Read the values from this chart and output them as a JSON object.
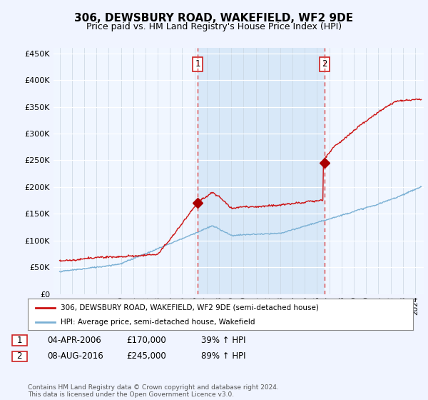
{
  "title": "306, DEWSBURY ROAD, WAKEFIELD, WF2 9DE",
  "subtitle": "Price paid vs. HM Land Registry's House Price Index (HPI)",
  "ylabel_ticks": [
    "£0",
    "£50K",
    "£100K",
    "£150K",
    "£200K",
    "£250K",
    "£300K",
    "£350K",
    "£400K",
    "£450K"
  ],
  "ytick_values": [
    0,
    50000,
    100000,
    150000,
    200000,
    250000,
    300000,
    350000,
    400000,
    450000
  ],
  "ylim": [
    0,
    460000
  ],
  "xlim_start": 1994.5,
  "xlim_end": 2024.7,
  "vline1_x": 2006.25,
  "vline2_x": 2016.6,
  "vline_color": "#dd4444",
  "marker1_x": 2006.25,
  "marker1_y": 170000,
  "marker2_x": 2016.6,
  "marker2_y": 245000,
  "marker_color": "#aa0000",
  "red_line_color": "#cc1111",
  "blue_line_color": "#7ab0d4",
  "background_color": "#f0f4ff",
  "plot_bg_color": "#f0f6ff",
  "shade_color": "#d8e8f8",
  "grid_color": "#c8d4e0",
  "legend_line1": "306, DEWSBURY ROAD, WAKEFIELD, WF2 9DE (semi-detached house)",
  "legend_line2": "HPI: Average price, semi-detached house, Wakefield",
  "table_row1": [
    "1",
    "04-APR-2006",
    "£170,000",
    "39% ↑ HPI"
  ],
  "table_row2": [
    "2",
    "08-AUG-2016",
    "£245,000",
    "89% ↑ HPI"
  ],
  "footer": "Contains HM Land Registry data © Crown copyright and database right 2024.\nThis data is licensed under the Open Government Licence v3.0.",
  "label1_text": "1",
  "label2_text": "2"
}
